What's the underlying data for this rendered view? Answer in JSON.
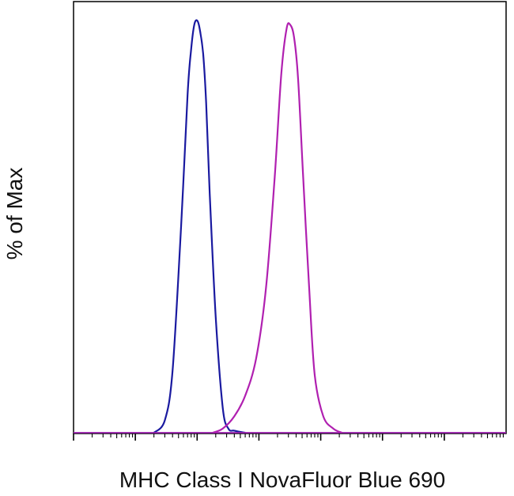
{
  "chart_data": {
    "type": "line",
    "title": "",
    "xlabel": "MHC Class I NovaFluor Blue 690",
    "ylabel": "% of Max",
    "x_scale": "log",
    "xlim": [
      1,
      10000000
    ],
    "ylim": [
      0,
      100
    ],
    "grid": false,
    "legend": "none",
    "series": [
      {
        "color": "#1a1aa0",
        "x": [
          20,
          30,
          40,
          55,
          70,
          80,
          90,
          100,
          110,
          125,
          140,
          160,
          200,
          260,
          320,
          400,
          600
        ],
        "y": [
          0,
          3,
          15,
          50,
          82,
          93,
          99,
          100,
          98,
          92,
          80,
          58,
          28,
          6,
          1,
          0.5,
          0
        ]
      },
      {
        "color": "#b020b0",
        "x": [
          180,
          260,
          400,
          600,
          900,
          1300,
          1800,
          2300,
          2800,
          3200,
          3700,
          4300,
          5200,
          6500,
          8000,
          11000,
          16000,
          22000
        ],
        "y": [
          0,
          1,
          4,
          9,
          18,
          35,
          62,
          87,
          98,
          99,
          96,
          86,
          62,
          35,
          14,
          4,
          1,
          0
        ]
      }
    ]
  }
}
